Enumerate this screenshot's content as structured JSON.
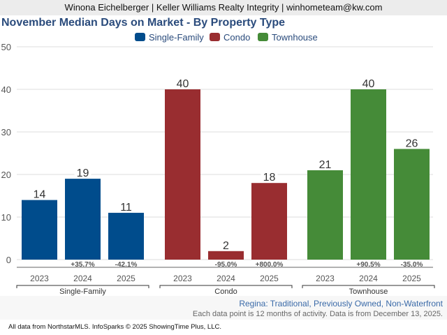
{
  "header": {
    "agent_line": "Winona Eichelberger | Keller Williams Realty Integrity | winhometeam@kw.com"
  },
  "colors": {
    "single_family": "#004c8c",
    "condo": "#992d30",
    "townhouse": "#458b38",
    "title": "#2a4b7c",
    "subtitle": "#3a6aa8",
    "grid": "#dddddd",
    "axis_text": "#555555"
  },
  "chart_data": {
    "type": "bar",
    "title": "November Median Days on Market - By Property Type",
    "xlabel": "",
    "ylabel": "",
    "ylim": [
      0,
      50
    ],
    "yticks": [
      0,
      10,
      20,
      30,
      40,
      50
    ],
    "grid": true,
    "legend_position": "top-center",
    "legend": [
      "Single-Family",
      "Condo",
      "Townhouse"
    ],
    "groups": [
      {
        "name": "Single-Family",
        "color_key": "single_family",
        "categories": [
          "2023",
          "2024",
          "2025"
        ],
        "values": [
          14,
          19,
          11
        ],
        "changes": [
          "",
          "+35.7%",
          "-42.1%"
        ]
      },
      {
        "name": "Condo",
        "color_key": "condo",
        "categories": [
          "2023",
          "2024",
          "2025"
        ],
        "values": [
          40,
          2,
          18
        ],
        "changes": [
          "",
          "-95.0%",
          "+800.0%"
        ]
      },
      {
        "name": "Townhouse",
        "color_key": "townhouse",
        "categories": [
          "2023",
          "2024",
          "2025"
        ],
        "values": [
          21,
          40,
          26
        ],
        "changes": [
          "",
          "+90.5%",
          "-35.0%"
        ]
      }
    ]
  },
  "footer": {
    "filter_description": "Regina: Traditional, Previously Owned, Non-Waterfront",
    "note": "Each data point is 12 months of activity. Data is from December 13, 2025.",
    "credit": "All data from NorthstarMLS. InfoSparks © 2025 ShowingTime Plus, LLC."
  }
}
